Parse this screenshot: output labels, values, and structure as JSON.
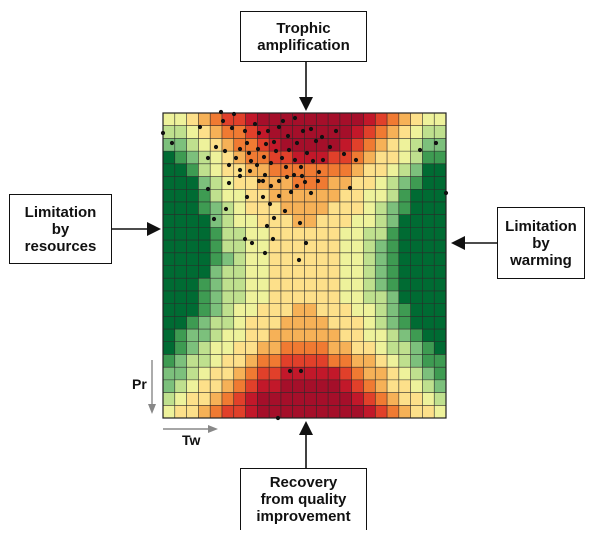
{
  "labels": {
    "top": "Trophic\namplification",
    "left": "Limitation\nby\nresources",
    "right": "Limitation\nby\nwarming",
    "bottom": "Recovery\nfrom quality\nimprovement"
  },
  "axes": {
    "vertical": "Pr",
    "horizontal": "Tw"
  },
  "grid": {
    "cols": 24,
    "rows": 24,
    "palette": [
      "#006b33",
      "#3e9b52",
      "#7cc07c",
      "#bfe08e",
      "#eef29b",
      "#fde08a",
      "#f6b157",
      "#f07a32",
      "#e1402a",
      "#c2182a",
      "#a50f2a"
    ]
  },
  "colors": {
    "border": "#111111",
    "arrow": "#111111",
    "axis_arrow": "#888888",
    "point": "#111111"
  }
}
